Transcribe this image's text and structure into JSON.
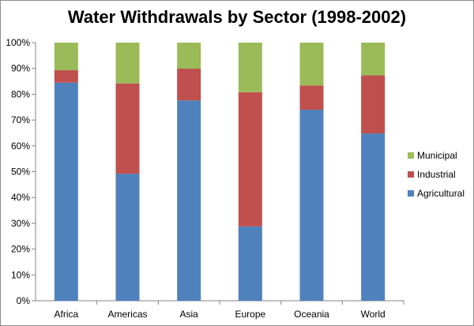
{
  "chart_data": {
    "type": "bar",
    "stacked": true,
    "title": "Water Withdrawals by Sector (1998-2002)",
    "categories": [
      "Africa",
      "Americas",
      "Asia",
      "Europe",
      "Oceania",
      "World"
    ],
    "series": [
      {
        "name": "Agricultural",
        "color": "#4f81bd",
        "values": [
          84.5,
          49.2,
          77.6,
          28.8,
          74.0,
          64.8
        ]
      },
      {
        "name": "Industrial",
        "color": "#c0504d",
        "values": [
          4.8,
          35.0,
          12.3,
          52.0,
          9.4,
          22.5
        ]
      },
      {
        "name": "Municipal",
        "color": "#9bbb59",
        "values": [
          10.7,
          15.8,
          10.1,
          19.2,
          16.6,
          12.7
        ]
      }
    ],
    "ylim": [
      0,
      100
    ],
    "yticks": [
      "0%",
      "10%",
      "20%",
      "30%",
      "40%",
      "50%",
      "60%",
      "70%",
      "80%",
      "90%",
      "100%"
    ],
    "legend": {
      "placement": "right",
      "order": [
        "Municipal",
        "Industrial",
        "Agricultural"
      ]
    },
    "grid": false
  }
}
